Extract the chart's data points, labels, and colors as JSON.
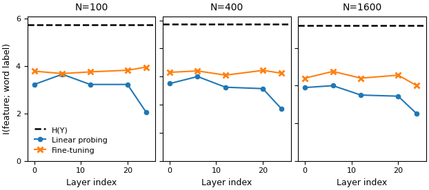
{
  "panels": [
    {
      "title": "N=100",
      "hline": 5.75,
      "ylim": [
        0,
        6.1
      ],
      "yticks": [
        0,
        2,
        4,
        6
      ],
      "linear_probing": [
        3.22,
        3.65,
        3.22,
        3.22,
        2.05
      ],
      "fine_tuning": [
        3.78,
        3.68,
        3.75,
        3.82,
        3.95
      ]
    },
    {
      "title": "N=400",
      "hline": 4.88,
      "ylim": [
        0,
        5.15
      ],
      "yticks": [
        0,
        1,
        2,
        3,
        4,
        5
      ],
      "linear_probing": [
        2.75,
        3.0,
        2.62,
        2.57,
        1.85
      ],
      "fine_tuning": [
        3.15,
        3.2,
        3.05,
        3.22,
        3.12
      ]
    },
    {
      "title": "N=1600",
      "hline": 3.6,
      "ylim": [
        0,
        3.85
      ],
      "yticks": [
        0,
        1,
        2,
        3
      ],
      "linear_probing": [
        1.95,
        2.0,
        1.75,
        1.72,
        1.25
      ],
      "fine_tuning": [
        2.2,
        2.38,
        2.2,
        2.28,
        2.0
      ]
    }
  ],
  "x_layers": [
    0,
    6,
    12,
    20,
    24
  ],
  "xlabel": "Layer index",
  "ylabel": "I(feature; word label)",
  "color_linear": "#1f77b4",
  "color_fine": "#ff7f0e"
}
